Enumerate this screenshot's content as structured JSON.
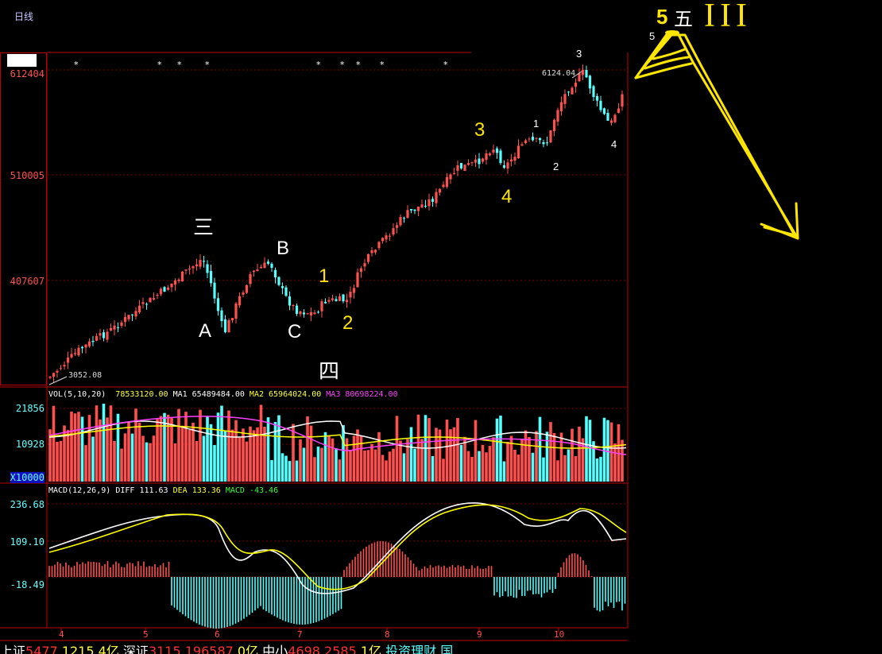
{
  "chart_title": "日线",
  "chart_data": [
    {
      "type": "candlestick",
      "y_ticks": [
        "612404",
        "510005",
        "407607"
      ],
      "annotations": {
        "low_price": "3052.08",
        "high_price": "6124.04",
        "wave_labels_white": [
          "三",
          "A",
          "B",
          "C",
          "四",
          "五"
        ],
        "wave_labels_yellow": [
          "1",
          "2",
          "3",
          "4",
          "5"
        ],
        "wave_labels_small": [
          "1",
          "2",
          "3",
          "4",
          "5"
        ],
        "roman": "III"
      }
    },
    {
      "type": "bar",
      "indicator": "VOL(5,10,20)",
      "vol_value": "78533120.00",
      "ma1_label": "MA1",
      "ma1_value": "65489484.00",
      "ma2_label": "MA2",
      "ma2_value": "65964024.00",
      "ma3_label": "MA3",
      "ma3_value": "80698224.00",
      "y_ticks": [
        "21856",
        "10928",
        "X10000"
      ]
    },
    {
      "type": "line",
      "indicator": "MACD(12,26,9)",
      "diff_label": "DIFF",
      "diff_value": "111.63",
      "dea_label": "DEA",
      "dea_value": "133.36",
      "macd_label": "MACD",
      "macd_value": "-43.46",
      "y_ticks": [
        "236.68",
        "109.10",
        "-18.49"
      ]
    }
  ],
  "x_ticks": [
    "4",
    "5",
    "6",
    "7",
    "8",
    "9",
    "10"
  ],
  "ticker": {
    "sh_label": "上证",
    "sh_value": "5477",
    "sh_change": "1215",
    "sh_amount": "4亿",
    "sz_label": "深证",
    "sz_value": "3115",
    "sz_change": "196587",
    "sz_amount": "0亿",
    "zx_label": "中小",
    "zx_value": "4698",
    "zx_change": "2585",
    "zx_amount": "1亿",
    "promo": "投资理财 国"
  },
  "colors": {
    "up": "#ff5050",
    "down": "#54ffff",
    "white_line": "#ffffff",
    "yellow_line": "#ffff00",
    "magenta_line": "#ff40ff",
    "annotation_yellow": "#ffe600"
  }
}
